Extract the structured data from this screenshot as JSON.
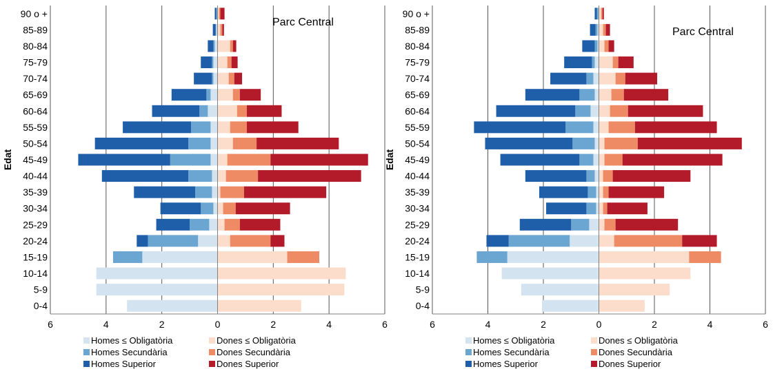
{
  "colors": {
    "homes_obligatoria": "#D3E4F0",
    "homes_secundaria": "#6BA6D2",
    "homes_superior": "#1F5EA8",
    "dones_obligatoria": "#FCDCCA",
    "dones_secundaria": "#EE8A64",
    "dones_superior": "#B31B2A"
  },
  "chart_data": [
    {
      "type": "bar",
      "orientation": "horizontal-diverging",
      "title": "Parc Central",
      "ylabel": "Edat",
      "xlabel": "",
      "xlim": [
        -6,
        6
      ],
      "xticks": [
        -6,
        -4,
        -2,
        0,
        2,
        4,
        6
      ],
      "xtick_labels": [
        "6",
        "4",
        "2",
        "0",
        "2",
        "4",
        "6"
      ],
      "grid": true,
      "legend": "bottom",
      "categories": [
        "0-4",
        "5-9",
        "10-14",
        "15-19",
        "20-24",
        "25-29",
        "30-34",
        "35-39",
        "40-44",
        "45-49",
        "50-54",
        "55-59",
        "60-64",
        "65-69",
        "70-74",
        "75-79",
        "80-84",
        "85-89",
        "90 o +"
      ],
      "series": [
        {
          "name": "Homes ≤ Obligatòria",
          "side": "left",
          "color": "homes_obligatoria",
          "values": [
            3.25,
            4.35,
            4.35,
            2.7,
            0.7,
            0.3,
            0.15,
            0.2,
            0.2,
            0.25,
            0.25,
            0.25,
            0.35,
            0.25,
            0.15,
            0.15,
            0.1,
            0.05,
            0.02
          ]
        },
        {
          "name": "Homes Secundària",
          "side": "left",
          "color": "homes_secundaria",
          "values": [
            0,
            0,
            0,
            1.05,
            1.8,
            0.7,
            0.45,
            0.6,
            0.85,
            1.45,
            0.8,
            0.7,
            0.3,
            0.15,
            0.05,
            0.05,
            0.05,
            0.02,
            0.02
          ]
        },
        {
          "name": "Homes Superior",
          "side": "left",
          "color": "homes_superior",
          "values": [
            0,
            0,
            0,
            0,
            0.4,
            1.2,
            1.45,
            2.2,
            3.1,
            3.3,
            3.35,
            2.45,
            1.7,
            1.25,
            0.65,
            0.4,
            0.2,
            0.1,
            0.06
          ]
        },
        {
          "name": "Dones ≤ Obligatòria",
          "side": "right",
          "color": "dones_obligatoria",
          "values": [
            3.0,
            4.55,
            4.6,
            2.5,
            0.45,
            0.25,
            0.2,
            0.1,
            0.3,
            0.35,
            0.55,
            0.45,
            0.7,
            0.55,
            0.4,
            0.35,
            0.45,
            0.1,
            0.05
          ]
        },
        {
          "name": "Dones Secundària",
          "side": "right",
          "color": "dones_secundaria",
          "values": [
            0,
            0,
            0,
            1.15,
            1.45,
            0.55,
            0.45,
            0.85,
            1.15,
            1.55,
            0.85,
            0.6,
            0.35,
            0.25,
            0.2,
            0.15,
            0.1,
            0.07,
            0.05
          ]
        },
        {
          "name": "Dones Superior",
          "side": "right",
          "color": "dones_superior",
          "values": [
            0,
            0,
            0,
            0,
            0.5,
            1.45,
            1.95,
            2.95,
            3.7,
            3.5,
            2.95,
            1.85,
            1.25,
            0.75,
            0.28,
            0.22,
            0.12,
            0.06,
            0.15
          ]
        }
      ]
    },
    {
      "type": "bar",
      "orientation": "horizontal-diverging",
      "title": "Parc Central",
      "ylabel": "Edat",
      "xlabel": "",
      "xlim": [
        -6,
        6
      ],
      "xticks": [
        -6,
        -4,
        -2,
        0,
        2,
        4,
        6
      ],
      "xtick_labels": [
        "6",
        "4",
        "2",
        "0",
        "2",
        "4",
        "6"
      ],
      "grid": true,
      "legend": "bottom",
      "categories": [
        "0-4",
        "5-9",
        "10-14",
        "15-19",
        "20-24",
        "25-29",
        "30-34",
        "35-39",
        "40-44",
        "45-49",
        "50-54",
        "55-59",
        "60-64",
        "65-69",
        "70-74",
        "75-79",
        "80-84",
        "85-89",
        "90 o +"
      ],
      "series": [
        {
          "name": "Homes ≤ Obligatòria",
          "side": "left",
          "color": "homes_obligatoria",
          "values": [
            2.05,
            2.8,
            3.5,
            3.3,
            1.05,
            0.35,
            0.1,
            0.1,
            0.15,
            0.2,
            0.15,
            0.2,
            0.3,
            0.15,
            0.2,
            0.15,
            0.05,
            0.05,
            0.02
          ]
        },
        {
          "name": "Homes Secundària",
          "side": "left",
          "color": "homes_secundaria",
          "values": [
            0,
            0,
            0,
            1.1,
            2.2,
            0.65,
            0.35,
            0.3,
            0.3,
            0.5,
            0.8,
            1.0,
            0.55,
            0.55,
            0.25,
            0.1,
            0.1,
            0.07,
            0.05
          ]
        },
        {
          "name": "Homes Superior",
          "side": "left",
          "color": "homes_superior",
          "values": [
            0,
            0,
            0,
            0,
            0.8,
            1.85,
            1.45,
            1.75,
            2.2,
            2.85,
            3.15,
            3.3,
            2.85,
            1.95,
            1.3,
            1.0,
            0.45,
            0.2,
            0.08
          ]
        },
        {
          "name": "Dones ≤ Obligatòria",
          "side": "right",
          "color": "dones_obligatoria",
          "values": [
            1.65,
            2.55,
            3.3,
            3.25,
            0.55,
            0.2,
            0.15,
            0.15,
            0.15,
            0.2,
            0.2,
            0.35,
            0.4,
            0.45,
            0.6,
            0.5,
            0.2,
            0.15,
            0.08
          ]
        },
        {
          "name": "Dones Secundària",
          "side": "right",
          "color": "dones_secundaria",
          "values": [
            0,
            0,
            0,
            1.15,
            2.45,
            0.4,
            0.15,
            0.2,
            0.35,
            0.65,
            1.2,
            0.95,
            0.65,
            0.45,
            0.35,
            0.2,
            0.15,
            0.1,
            0.05
          ]
        },
        {
          "name": "Dones Superior",
          "side": "right",
          "color": "dones_superior",
          "values": [
            0,
            0,
            0,
            0,
            1.25,
            2.25,
            1.45,
            2.0,
            2.8,
            3.6,
            3.75,
            2.95,
            2.7,
            1.6,
            1.15,
            0.55,
            0.2,
            0.15,
            0.05
          ]
        }
      ]
    }
  ]
}
